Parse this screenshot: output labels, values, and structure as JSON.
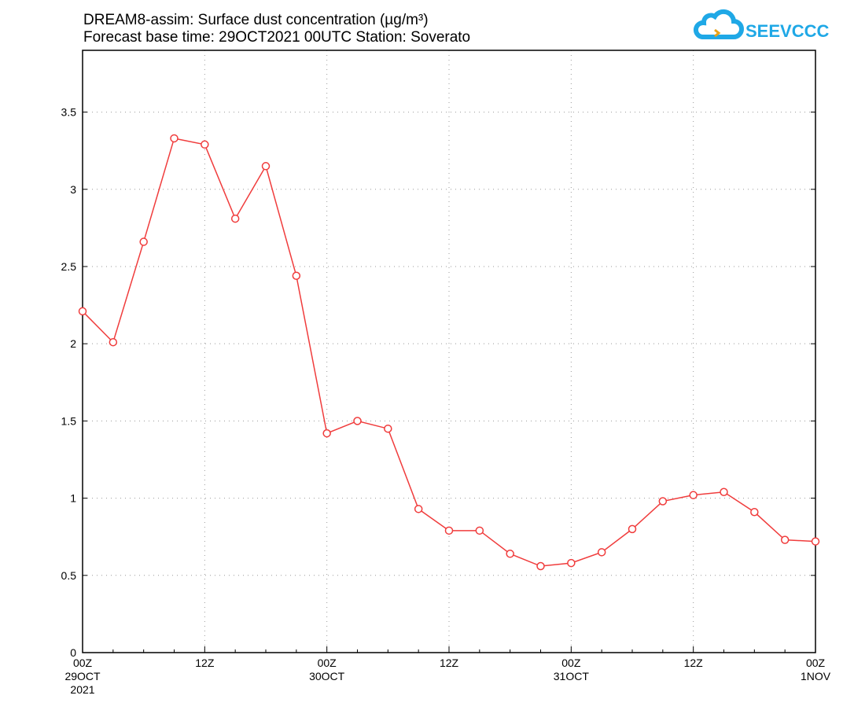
{
  "chart_data": {
    "type": "line",
    "title": "DREAM8-assim: Surface dust concentration (µg/m³)",
    "subtitle": "Forecast base time: 29OCT2021 00UTC   Station: Soverato",
    "xlabel": "",
    "ylabel": "",
    "ylim": [
      0,
      3.9
    ],
    "xlim_hours": [
      0,
      72
    ],
    "grid": true,
    "y_ticks": [
      0,
      0.5,
      1,
      1.5,
      2,
      2.5,
      3,
      3.5
    ],
    "y_tick_labels": [
      "0",
      "0.5",
      "1",
      "1.5",
      "2",
      "2.5",
      "3",
      "3.5"
    ],
    "x_ticks": [
      {
        "hour": 0,
        "label": "00Z",
        "sub": "29OCT",
        "sub2": "2021"
      },
      {
        "hour": 12,
        "label": "12Z",
        "sub": "",
        "sub2": ""
      },
      {
        "hour": 24,
        "label": "00Z",
        "sub": "30OCT",
        "sub2": ""
      },
      {
        "hour": 36,
        "label": "12Z",
        "sub": "",
        "sub2": ""
      },
      {
        "hour": 48,
        "label": "00Z",
        "sub": "31OCT",
        "sub2": ""
      },
      {
        "hour": 60,
        "label": "12Z",
        "sub": "",
        "sub2": ""
      },
      {
        "hour": 72,
        "label": "00Z",
        "sub": "1NOV",
        "sub2": ""
      }
    ],
    "series": [
      {
        "name": "Surface dust concentration",
        "color": "#f03c3c",
        "x_hours": [
          0,
          3,
          6,
          9,
          12,
          15,
          18,
          21,
          24,
          27,
          30,
          33,
          36,
          39,
          42,
          45,
          48,
          51,
          54,
          57,
          60,
          63,
          66,
          69,
          72
        ],
        "values": [
          2.21,
          2.01,
          2.66,
          3.33,
          3.29,
          2.81,
          3.15,
          2.44,
          1.42,
          1.5,
          1.45,
          0.93,
          0.79,
          0.79,
          0.64,
          0.56,
          0.58,
          0.65,
          0.8,
          0.98,
          1.02,
          1.04,
          0.91,
          0.73,
          0.72
        ]
      }
    ]
  },
  "logo": {
    "text": "SEEVCCC",
    "color": "#1fa8e6"
  }
}
